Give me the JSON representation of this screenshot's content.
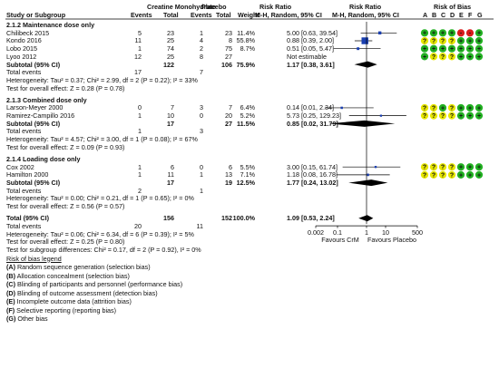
{
  "header": {
    "group1": "Creatine Monohydrate",
    "group2": "Placebo",
    "rr_left": "Risk Ratio",
    "rr_right": "Risk Ratio",
    "bias_title": "Risk of Bias",
    "study": "Study or Subgroup",
    "events": "Events",
    "total": "Total",
    "weight": "Weight",
    "method_left": "M-H, Random, 95% CI",
    "method_right": "M-H, Random, 95% CI",
    "bias_letters": [
      "A",
      "B",
      "C",
      "D",
      "E",
      "F",
      "G"
    ]
  },
  "subgroups": [
    {
      "title": "2.1.2 Maintenance dose only",
      "studies": [
        {
          "name": "Chilibeck 2015",
          "e1": "5",
          "t1": "23",
          "e2": "1",
          "t2": "23",
          "w": "11.4%",
          "ci": "5.00 [0.63, 39.54]",
          "rr": 5.0,
          "lo": 0.63,
          "hi": 39.54,
          "bias": [
            "+",
            "+",
            "+",
            "+",
            "-",
            "-",
            "+"
          ]
        },
        {
          "name": "Kondo 2016",
          "e1": "11",
          "t1": "25",
          "e2": "4",
          "t2": "8",
          "w": "55.8%",
          "ci": "0.88 [0.39, 2.00]",
          "rr": 0.88,
          "lo": 0.39,
          "hi": 2.0,
          "bias": [
            "?",
            "?",
            "?",
            "?",
            "+",
            "+",
            "+"
          ]
        },
        {
          "name": "Lobo 2015",
          "e1": "1",
          "t1": "74",
          "e2": "2",
          "t2": "75",
          "w": "8.7%",
          "ci": "0.51 [0.05, 5.47]",
          "rr": 0.51,
          "lo": 0.05,
          "hi": 5.47,
          "bias": [
            "+",
            "+",
            "+",
            "+",
            "+",
            "+",
            "+"
          ]
        },
        {
          "name": "Lyoo 2012",
          "e1": "12",
          "t1": "25",
          "e2": "8",
          "t2": "27",
          "w": "",
          "ci": "Not estimable",
          "rr": null,
          "lo": null,
          "hi": null,
          "bias": [
            "+",
            "?",
            "?",
            "?",
            "+",
            "+",
            "+"
          ]
        }
      ],
      "subtotal": {
        "label": "Subtotal (95% CI)",
        "t1": "122",
        "t2": "106",
        "w": "75.9%",
        "ci": "1.17 [0.38, 3.61]",
        "rr": 1.17,
        "lo": 0.38,
        "hi": 3.61
      },
      "total_events": {
        "label": "Total events",
        "e1": "17",
        "e2": "7"
      },
      "heterogeneity": "Heterogeneity: Tau² = 0.37; Chi² = 2.99, df = 2 (P = 0.22); I² = 33%",
      "overall": "Test for overall effect: Z = 0.28 (P = 0.78)"
    },
    {
      "title": "2.1.3 Combined dose only",
      "studies": [
        {
          "name": "Larson-Meyer 2000",
          "e1": "0",
          "t1": "7",
          "e2": "3",
          "t2": "7",
          "w": "6.4%",
          "ci": "0.14 [0.01, 2.34]",
          "rr": 0.14,
          "lo": 0.01,
          "hi": 2.34,
          "bias": [
            "?",
            "?",
            "+",
            "?",
            "+",
            "+",
            "+"
          ]
        },
        {
          "name": "Ramirez-Campillo 2016",
          "e1": "1",
          "t1": "10",
          "e2": "0",
          "t2": "20",
          "w": "5.2%",
          "ci": "5.73 [0.25, 129.23]",
          "rr": 5.73,
          "lo": 0.25,
          "hi": 129.23,
          "bias": [
            "?",
            "?",
            "?",
            "?",
            "+",
            "+",
            "+"
          ]
        }
      ],
      "subtotal": {
        "label": "Subtotal (95% CI)",
        "t1": "17",
        "t2": "27",
        "w": "11.5%",
        "ci": "0.85 [0.02, 31.79]",
        "rr": 0.85,
        "lo": 0.02,
        "hi": 31.79
      },
      "total_events": {
        "label": "Total events",
        "e1": "1",
        "e2": "3"
      },
      "heterogeneity": "Heterogeneity: Tau² = 4.57; Chi² = 3.00, df = 1 (P = 0.08); I² = 67%",
      "overall": "Test for overall effect: Z = 0.09 (P = 0.93)"
    },
    {
      "title": "2.1.4 Loading dose only",
      "studies": [
        {
          "name": "Cox 2002",
          "e1": "1",
          "t1": "6",
          "e2": "0",
          "t2": "6",
          "w": "5.5%",
          "ci": "3.00 [0.15, 61.74]",
          "rr": 3.0,
          "lo": 0.15,
          "hi": 61.74,
          "bias": [
            "?",
            "?",
            "?",
            "?",
            "+",
            "+",
            "+"
          ]
        },
        {
          "name": "Hamilton 2000",
          "e1": "1",
          "t1": "11",
          "e2": "1",
          "t2": "13",
          "w": "7.1%",
          "ci": "1.18 [0.08, 16.78]",
          "rr": 1.18,
          "lo": 0.08,
          "hi": 16.78,
          "bias": [
            "?",
            "?",
            "?",
            "?",
            "+",
            "+",
            "+"
          ]
        }
      ],
      "subtotal": {
        "label": "Subtotal (95% CI)",
        "t1": "17",
        "t2": "19",
        "w": "12.5%",
        "ci": "1.77 [0.24, 13.02]",
        "rr": 1.77,
        "lo": 0.24,
        "hi": 13.02
      },
      "total_events": {
        "label": "Total events",
        "e1": "2",
        "e2": "1"
      },
      "heterogeneity": "Heterogeneity: Tau² = 0.00; Chi² = 0.21, df = 1 (P = 0.65); I² = 0%",
      "overall": "Test for overall effect: Z = 0.56 (P = 0.57)"
    }
  ],
  "total": {
    "label": "Total (95% CI)",
    "t1": "156",
    "t2": "152",
    "w": "100.0%",
    "ci": "1.09 [0.53, 2.24]",
    "rr": 1.09,
    "lo": 0.53,
    "hi": 2.24,
    "events_label": "Total events",
    "e1": "20",
    "e2": "11",
    "heterogeneity": "Heterogeneity: Tau² = 0.06; Chi² = 6.34, df = 6 (P = 0.39); I² = 5%",
    "overall": "Test for overall effect: Z = 0.25 (P = 0.80)",
    "subgroup_diff": "Test for subgroup differences: Chi² = 0.17, df = 2 (P = 0.92), I² = 0%"
  },
  "axis": {
    "ticks": [
      0.002,
      0.1,
      1,
      10,
      500
    ],
    "tick_labels": [
      "0.002",
      "0.1",
      "1",
      "10",
      "500"
    ],
    "left_label": "Favours CrM",
    "right_label": "Favours Placebo"
  },
  "legend": {
    "title": "Risk of bias legend",
    "items": [
      {
        "letter": "(A)",
        "text": " Random sequence generation (selection bias)"
      },
      {
        "letter": "(B)",
        "text": " Allocation concealment (selection bias)"
      },
      {
        "letter": "(C)",
        "text": " Blinding of participants and personnel (performance bias)"
      },
      {
        "letter": "(D)",
        "text": " Blinding of outcome assessment (detection bias)"
      },
      {
        "letter": "(E)",
        "text": " Incomplete outcome data (attrition bias)"
      },
      {
        "letter": "(F)",
        "text": " Selective reporting (reporting bias)"
      },
      {
        "letter": "(G)",
        "text": " Other bias"
      }
    ]
  },
  "colors": {
    "low": "#22b022",
    "unclear": "#e6e600",
    "high": "#d81c1c",
    "marker": "#1a3fb0",
    "line": "#000000"
  },
  "chart_data": {
    "type": "forest",
    "measure": "Risk Ratio (M-H, Random, 95% CI)",
    "xscale": "log",
    "xlim": [
      0.002,
      500
    ],
    "x_ticks": [
      0.002,
      0.1,
      1,
      10,
      500
    ],
    "xlabel_left": "Favours CrM",
    "xlabel_right": "Favours Placebo",
    "studies": [
      {
        "name": "Chilibeck 2015",
        "rr": 5.0,
        "lo": 0.63,
        "hi": 39.54,
        "weight": 11.4
      },
      {
        "name": "Kondo 2016",
        "rr": 0.88,
        "lo": 0.39,
        "hi": 2.0,
        "weight": 55.8
      },
      {
        "name": "Lobo 2015",
        "rr": 0.51,
        "lo": 0.05,
        "hi": 5.47,
        "weight": 8.7
      },
      {
        "name": "Lyoo 2012",
        "rr": null,
        "lo": null,
        "hi": null,
        "weight": null
      },
      {
        "name": "Larson-Meyer 2000",
        "rr": 0.14,
        "lo": 0.01,
        "hi": 2.34,
        "weight": 6.4
      },
      {
        "name": "Ramirez-Campillo 2016",
        "rr": 5.73,
        "lo": 0.25,
        "hi": 129.23,
        "weight": 5.2
      },
      {
        "name": "Cox 2002",
        "rr": 3.0,
        "lo": 0.15,
        "hi": 61.74,
        "weight": 5.5
      },
      {
        "name": "Hamilton 2000",
        "rr": 1.18,
        "lo": 0.08,
        "hi": 16.78,
        "weight": 7.1
      }
    ],
    "subtotals": [
      {
        "name": "2.1.2 Maintenance dose only",
        "rr": 1.17,
        "lo": 0.38,
        "hi": 3.61,
        "weight": 75.9
      },
      {
        "name": "2.1.3 Combined dose only",
        "rr": 0.85,
        "lo": 0.02,
        "hi": 31.79,
        "weight": 11.5
      },
      {
        "name": "2.1.4 Loading dose only",
        "rr": 1.77,
        "lo": 0.24,
        "hi": 13.02,
        "weight": 12.5
      }
    ],
    "overall": {
      "rr": 1.09,
      "lo": 0.53,
      "hi": 2.24,
      "weight": 100.0
    }
  }
}
